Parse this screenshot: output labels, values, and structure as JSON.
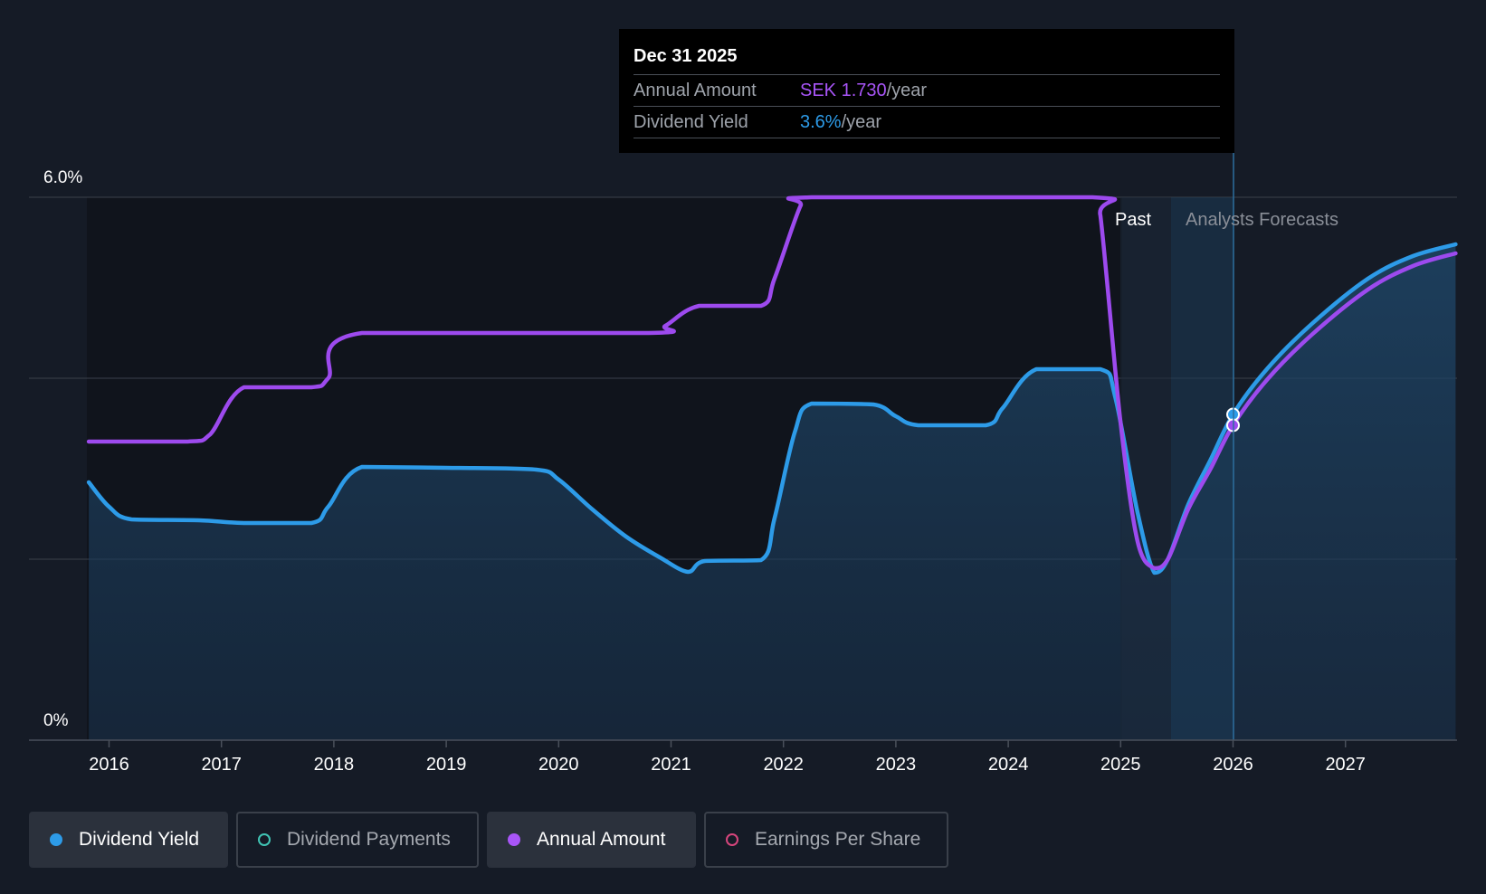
{
  "chart_data": {
    "type": "line",
    "x_ticks": [
      "2016",
      "2017",
      "2018",
      "2019",
      "2020",
      "2021",
      "2022",
      "2023",
      "2024",
      "2025",
      "2026",
      "2027"
    ],
    "y_ticks": [
      "0%",
      "6.0%"
    ],
    "ylim": [
      0,
      6.0
    ],
    "xlim": [
      2015.65,
      2027.98
    ],
    "grid": true,
    "past_label": "Past",
    "forecast_label": "Analysts Forecasts",
    "series": [
      {
        "name": "Dividend Yield",
        "color": "#2d9be8",
        "area": true,
        "x": [
          2015.82,
          2016.0,
          2016.2,
          2016.8,
          2017.2,
          2017.8,
          2017.95,
          2018.25,
          2019.0,
          2019.8,
          2020.0,
          2020.3,
          2020.6,
          2020.9,
          2021.15,
          2021.3,
          2021.8,
          2021.92,
          2022.1,
          2022.25,
          2022.8,
          2023.0,
          2023.2,
          2023.8,
          2023.95,
          2024.25,
          2024.82,
          2024.95,
          2025.15,
          2025.3,
          2025.42,
          2025.6,
          2025.8,
          2026.0,
          2026.3,
          2026.7,
          2027.2,
          2027.6,
          2027.98
        ],
        "y": [
          2.85,
          2.58,
          2.44,
          2.43,
          2.4,
          2.4,
          2.58,
          3.02,
          3.01,
          2.99,
          2.88,
          2.55,
          2.25,
          2.02,
          1.86,
          1.98,
          1.99,
          2.45,
          3.4,
          3.72,
          3.71,
          3.58,
          3.48,
          3.48,
          3.67,
          4.1,
          4.1,
          3.8,
          2.52,
          1.85,
          2.0,
          2.6,
          3.1,
          3.6,
          4.1,
          4.6,
          5.1,
          5.35,
          5.48
        ],
        "marker": {
          "x": 2026.0,
          "y": 3.6
        }
      },
      {
        "name": "Annual Amount",
        "color": "#9d4aee",
        "area": false,
        "x": [
          2015.82,
          2016.7,
          2016.9,
          2017.2,
          2017.8,
          2017.95,
          2018.25,
          2020.8,
          2020.95,
          2021.25,
          2021.8,
          2021.92,
          2022.15,
          2022.25,
          2024.75,
          2024.82,
          2025.0,
          2025.15,
          2025.3,
          2025.42,
          2025.6,
          2025.8,
          2026.0,
          2026.3,
          2026.7,
          2027.2,
          2027.6,
          2027.98
        ],
        "y": [
          3.3,
          3.3,
          3.38,
          3.9,
          3.9,
          4.0,
          4.5,
          4.5,
          4.58,
          4.8,
          4.8,
          5.1,
          5.9,
          6.0,
          6.0,
          5.8,
          3.5,
          2.2,
          1.9,
          2.0,
          2.55,
          3.0,
          3.48,
          3.98,
          4.48,
          4.98,
          5.24,
          5.38
        ],
        "marker": {
          "x": 2026.0,
          "y": 3.48
        }
      }
    ]
  },
  "tooltip": {
    "date": "Dec 31 2025",
    "rows": [
      {
        "label": "Annual Amount",
        "value": "SEK 1.730",
        "unit": "/year",
        "color": "#a855f7"
      },
      {
        "label": "Dividend Yield",
        "value": "3.6%",
        "unit": "/year",
        "color": "#2d9be8"
      }
    ]
  },
  "legend": [
    {
      "label": "Dividend Yield",
      "active": true,
      "color": "#2d9be8",
      "icon": "filled-dot-icon"
    },
    {
      "label": "Dividend Payments",
      "active": false,
      "color": "#40c4b4",
      "icon": "hollow-dot-icon"
    },
    {
      "label": "Annual Amount",
      "active": true,
      "color": "#a855f7",
      "icon": "filled-dot-icon"
    },
    {
      "label": "Earnings Per Share",
      "active": false,
      "color": "#d6457c",
      "icon": "hollow-dot-icon"
    }
  ]
}
